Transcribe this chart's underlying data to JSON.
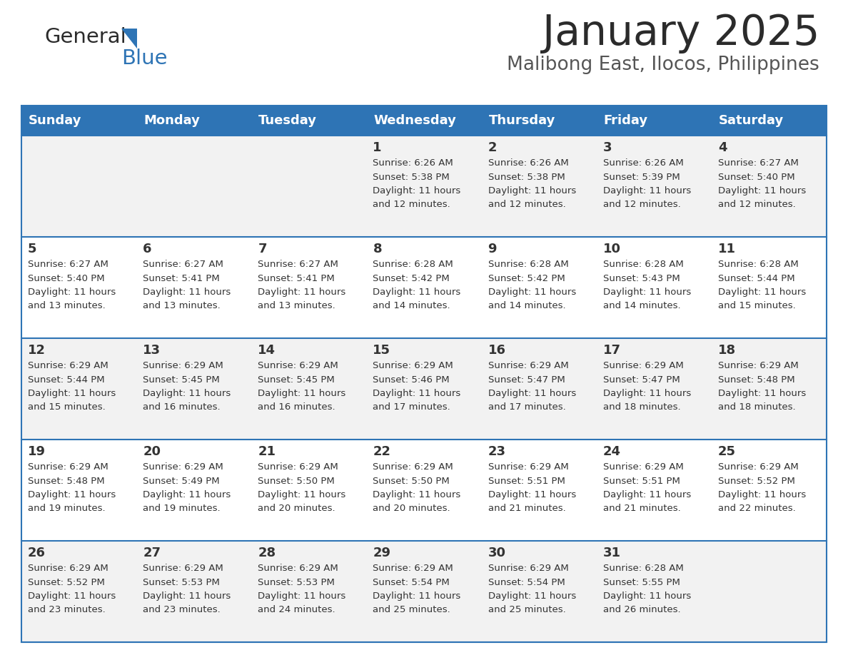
{
  "title": "January 2025",
  "subtitle": "Malibong East, Ilocos, Philippines",
  "header_bg": "#2E74B5",
  "header_text_color": "#FFFFFF",
  "row0_bg": "#F2F2F2",
  "row1_bg": "#FFFFFF",
  "border_color": "#2E74B5",
  "text_color": "#333333",
  "day_headers": [
    "Sunday",
    "Monday",
    "Tuesday",
    "Wednesday",
    "Thursday",
    "Friday",
    "Saturday"
  ],
  "calendar_data": [
    [
      {
        "day": "",
        "lines": []
      },
      {
        "day": "",
        "lines": []
      },
      {
        "day": "",
        "lines": []
      },
      {
        "day": "1",
        "lines": [
          "Sunrise: 6:26 AM",
          "Sunset: 5:38 PM",
          "Daylight: 11 hours",
          "and 12 minutes."
        ]
      },
      {
        "day": "2",
        "lines": [
          "Sunrise: 6:26 AM",
          "Sunset: 5:38 PM",
          "Daylight: 11 hours",
          "and 12 minutes."
        ]
      },
      {
        "day": "3",
        "lines": [
          "Sunrise: 6:26 AM",
          "Sunset: 5:39 PM",
          "Daylight: 11 hours",
          "and 12 minutes."
        ]
      },
      {
        "day": "4",
        "lines": [
          "Sunrise: 6:27 AM",
          "Sunset: 5:40 PM",
          "Daylight: 11 hours",
          "and 12 minutes."
        ]
      }
    ],
    [
      {
        "day": "5",
        "lines": [
          "Sunrise: 6:27 AM",
          "Sunset: 5:40 PM",
          "Daylight: 11 hours",
          "and 13 minutes."
        ]
      },
      {
        "day": "6",
        "lines": [
          "Sunrise: 6:27 AM",
          "Sunset: 5:41 PM",
          "Daylight: 11 hours",
          "and 13 minutes."
        ]
      },
      {
        "day": "7",
        "lines": [
          "Sunrise: 6:27 AM",
          "Sunset: 5:41 PM",
          "Daylight: 11 hours",
          "and 13 minutes."
        ]
      },
      {
        "day": "8",
        "lines": [
          "Sunrise: 6:28 AM",
          "Sunset: 5:42 PM",
          "Daylight: 11 hours",
          "and 14 minutes."
        ]
      },
      {
        "day": "9",
        "lines": [
          "Sunrise: 6:28 AM",
          "Sunset: 5:42 PM",
          "Daylight: 11 hours",
          "and 14 minutes."
        ]
      },
      {
        "day": "10",
        "lines": [
          "Sunrise: 6:28 AM",
          "Sunset: 5:43 PM",
          "Daylight: 11 hours",
          "and 14 minutes."
        ]
      },
      {
        "day": "11",
        "lines": [
          "Sunrise: 6:28 AM",
          "Sunset: 5:44 PM",
          "Daylight: 11 hours",
          "and 15 minutes."
        ]
      }
    ],
    [
      {
        "day": "12",
        "lines": [
          "Sunrise: 6:29 AM",
          "Sunset: 5:44 PM",
          "Daylight: 11 hours",
          "and 15 minutes."
        ]
      },
      {
        "day": "13",
        "lines": [
          "Sunrise: 6:29 AM",
          "Sunset: 5:45 PM",
          "Daylight: 11 hours",
          "and 16 minutes."
        ]
      },
      {
        "day": "14",
        "lines": [
          "Sunrise: 6:29 AM",
          "Sunset: 5:45 PM",
          "Daylight: 11 hours",
          "and 16 minutes."
        ]
      },
      {
        "day": "15",
        "lines": [
          "Sunrise: 6:29 AM",
          "Sunset: 5:46 PM",
          "Daylight: 11 hours",
          "and 17 minutes."
        ]
      },
      {
        "day": "16",
        "lines": [
          "Sunrise: 6:29 AM",
          "Sunset: 5:47 PM",
          "Daylight: 11 hours",
          "and 17 minutes."
        ]
      },
      {
        "day": "17",
        "lines": [
          "Sunrise: 6:29 AM",
          "Sunset: 5:47 PM",
          "Daylight: 11 hours",
          "and 18 minutes."
        ]
      },
      {
        "day": "18",
        "lines": [
          "Sunrise: 6:29 AM",
          "Sunset: 5:48 PM",
          "Daylight: 11 hours",
          "and 18 minutes."
        ]
      }
    ],
    [
      {
        "day": "19",
        "lines": [
          "Sunrise: 6:29 AM",
          "Sunset: 5:48 PM",
          "Daylight: 11 hours",
          "and 19 minutes."
        ]
      },
      {
        "day": "20",
        "lines": [
          "Sunrise: 6:29 AM",
          "Sunset: 5:49 PM",
          "Daylight: 11 hours",
          "and 19 minutes."
        ]
      },
      {
        "day": "21",
        "lines": [
          "Sunrise: 6:29 AM",
          "Sunset: 5:50 PM",
          "Daylight: 11 hours",
          "and 20 minutes."
        ]
      },
      {
        "day": "22",
        "lines": [
          "Sunrise: 6:29 AM",
          "Sunset: 5:50 PM",
          "Daylight: 11 hours",
          "and 20 minutes."
        ]
      },
      {
        "day": "23",
        "lines": [
          "Sunrise: 6:29 AM",
          "Sunset: 5:51 PM",
          "Daylight: 11 hours",
          "and 21 minutes."
        ]
      },
      {
        "day": "24",
        "lines": [
          "Sunrise: 6:29 AM",
          "Sunset: 5:51 PM",
          "Daylight: 11 hours",
          "and 21 minutes."
        ]
      },
      {
        "day": "25",
        "lines": [
          "Sunrise: 6:29 AM",
          "Sunset: 5:52 PM",
          "Daylight: 11 hours",
          "and 22 minutes."
        ]
      }
    ],
    [
      {
        "day": "26",
        "lines": [
          "Sunrise: 6:29 AM",
          "Sunset: 5:52 PM",
          "Daylight: 11 hours",
          "and 23 minutes."
        ]
      },
      {
        "day": "27",
        "lines": [
          "Sunrise: 6:29 AM",
          "Sunset: 5:53 PM",
          "Daylight: 11 hours",
          "and 23 minutes."
        ]
      },
      {
        "day": "28",
        "lines": [
          "Sunrise: 6:29 AM",
          "Sunset: 5:53 PM",
          "Daylight: 11 hours",
          "and 24 minutes."
        ]
      },
      {
        "day": "29",
        "lines": [
          "Sunrise: 6:29 AM",
          "Sunset: 5:54 PM",
          "Daylight: 11 hours",
          "and 25 minutes."
        ]
      },
      {
        "day": "30",
        "lines": [
          "Sunrise: 6:29 AM",
          "Sunset: 5:54 PM",
          "Daylight: 11 hours",
          "and 25 minutes."
        ]
      },
      {
        "day": "31",
        "lines": [
          "Sunrise: 6:28 AM",
          "Sunset: 5:55 PM",
          "Daylight: 11 hours",
          "and 26 minutes."
        ]
      },
      {
        "day": "",
        "lines": []
      }
    ]
  ]
}
